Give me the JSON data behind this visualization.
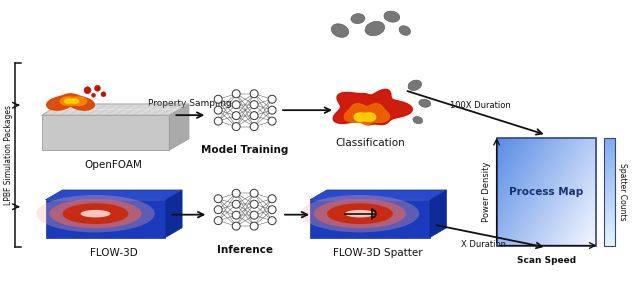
{
  "bg_color": "#ffffff",
  "left_label": "LPBF Simulation Packages",
  "process_map_label": "Process Map",
  "process_map_xlabel": "Scan Speed",
  "process_map_ylabel": "Power Density",
  "spatter_counts_label": "Spatter Counts",
  "labels": {
    "openfoam": "OpenFOAM",
    "model_training": "Model Training",
    "classification": "Classification",
    "flow3d": "FLOW-3D",
    "inference": "Inference",
    "flow3d_spatter": "FLOW-3D Spatter",
    "property_sampling": "Property Sampling",
    "100x_duration": "100X Duration",
    "x_duration": "X Duration"
  },
  "arrow_color": "#111111",
  "nn_node_color": "#ffffff",
  "nn_edge_color": "#444444"
}
